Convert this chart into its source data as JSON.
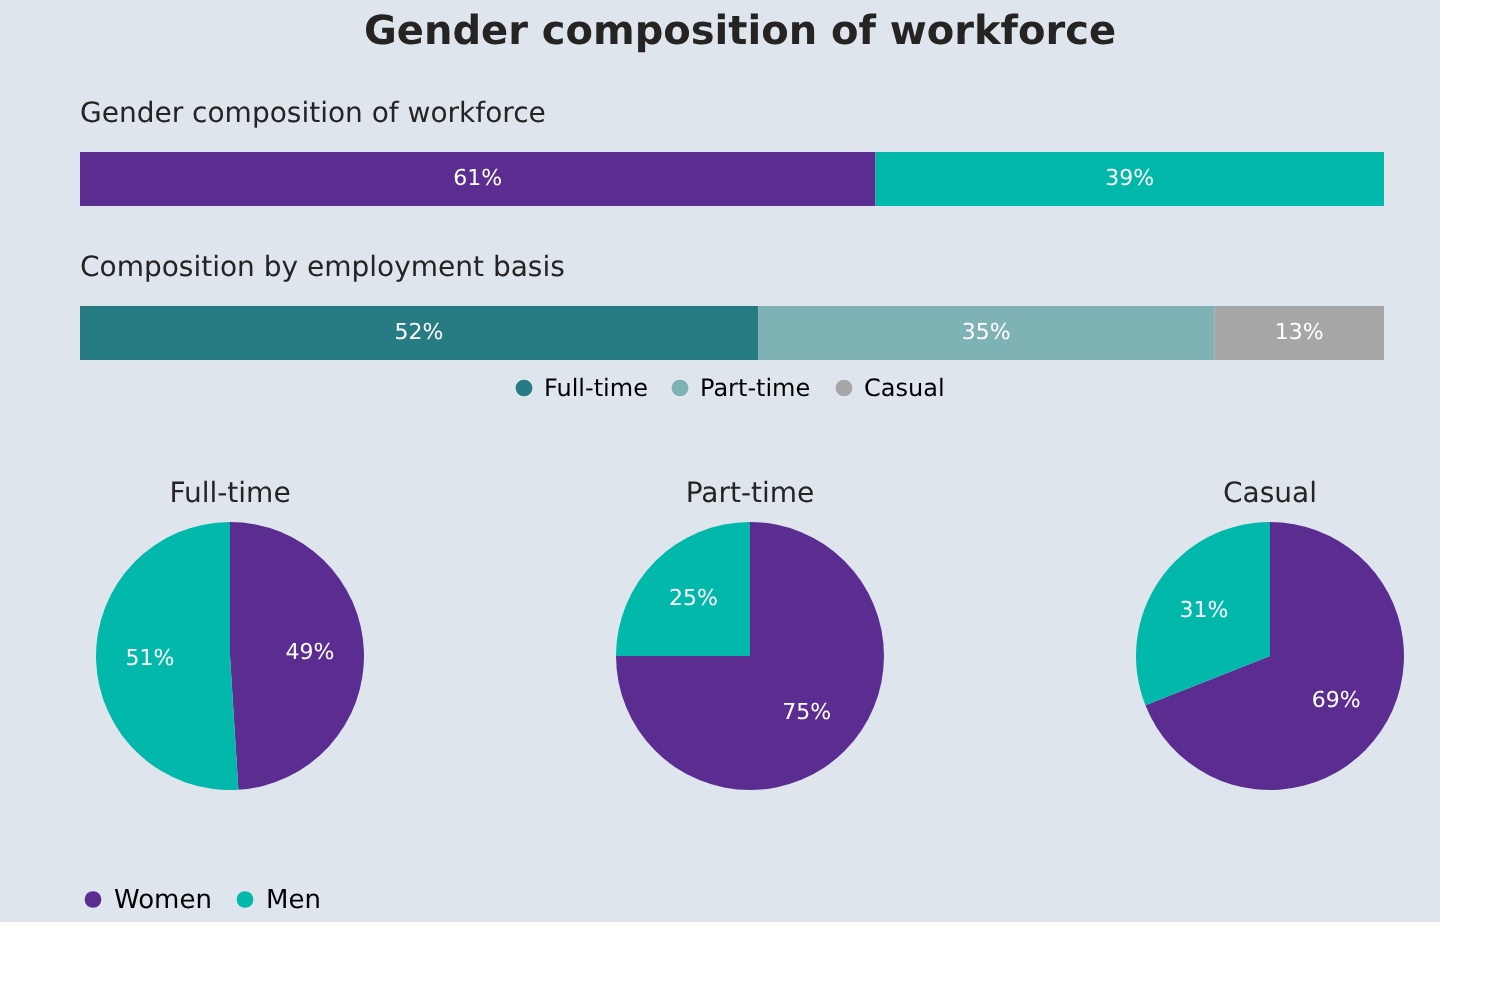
{
  "chart_data": [
    {
      "type": "other",
      "title": "Gender composition of workforce"
    },
    {
      "type": "bar",
      "title": "Gender composition of workforce",
      "orientation": "horizontal",
      "stacked": true,
      "categories": [
        null
      ],
      "series": [
        {
          "color": "#5c2d91",
          "values": [
            61
          ],
          "value_labels": [
            "61%"
          ]
        },
        {
          "color": "#01b8aa",
          "values": [
            39
          ],
          "value_labels": [
            "39%"
          ]
        }
      ]
    },
    {
      "type": "bar",
      "title": "Composition by employment basis",
      "orientation": "horizontal",
      "stacked": true,
      "legend": "bottom",
      "categories": [
        null
      ],
      "series": [
        {
          "name": "Full-time",
          "color": "#277b82",
          "values": [
            52
          ],
          "value_labels": [
            "52%"
          ]
        },
        {
          "name": "Part-time",
          "color": "#7fb2b4",
          "values": [
            35
          ],
          "value_labels": [
            "35%"
          ]
        },
        {
          "name": "Casual",
          "color": "#a6a6a6",
          "values": [
            13
          ],
          "value_labels": [
            "13%"
          ]
        }
      ]
    },
    {
      "type": "pie",
      "title": "Full-time",
      "categories": [
        "Women",
        "Men"
      ],
      "values": [
        49,
        51
      ],
      "value_labels": [
        "49%",
        "51%"
      ],
      "colors": [
        "#5c2d91",
        "#01b8aa"
      ],
      "legend": "bottom"
    },
    {
      "type": "pie",
      "title": "Part-time",
      "categories": [
        null,
        null
      ],
      "values": [
        75,
        25
      ],
      "value_labels": [
        "75%",
        "25%"
      ],
      "colors": [
        "#5c2d91",
        "#01b8aa"
      ]
    },
    {
      "type": "pie",
      "title": "Casual",
      "categories": [
        null,
        null
      ],
      "values": [
        69,
        31
      ],
      "value_labels": [
        "69%",
        "31%"
      ],
      "colors": [
        "#5c2d91",
        "#01b8aa"
      ]
    }
  ]
}
